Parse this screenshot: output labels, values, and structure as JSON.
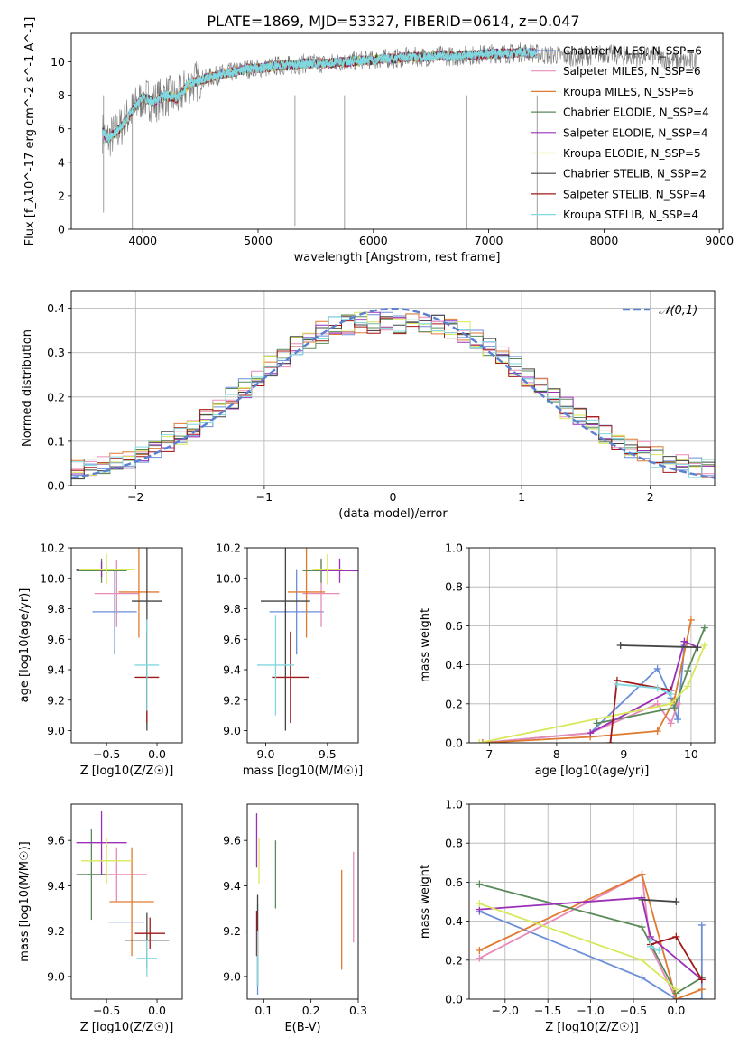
{
  "title": "PLATE=1869, MJD=53327, FIBERID=0614, z=0.047",
  "legend_colors": [
    "#6a8ed8",
    "#e88bb8",
    "#e07a30",
    "#5a8a5a",
    "#9b30b8",
    "#d8e85a",
    "#444444",
    "#a01818",
    "#80d8e0"
  ],
  "chart_data": [
    {
      "type": "line",
      "id": "spectrum",
      "xlabel": "wavelength [Angstrom, rest frame]",
      "ylabel": "Flux [f_λ10^-17 erg cm^-2 s^-1 A^-1]",
      "xlim": [
        3380,
        9030
      ],
      "ylim": [
        0,
        11.7
      ],
      "xticks": [
        4000,
        5000,
        6000,
        7000,
        8000,
        9000
      ],
      "yticks": [
        0,
        2,
        4,
        6,
        8,
        10
      ],
      "data_spectrum": {
        "name": "data",
        "color": "#777777",
        "x": [
          3650,
          3700,
          3800,
          3900,
          4000,
          4100,
          4200,
          4300,
          4400,
          4500,
          4600,
          4700,
          4800,
          4900,
          5000,
          5100,
          5200,
          5300,
          5400,
          5500,
          5600,
          5700,
          5800,
          5900,
          6000,
          6100,
          6200,
          6300,
          6400,
          6500,
          6600,
          6700,
          6800,
          6900,
          7000,
          7100,
          7200,
          7300,
          7400,
          7500,
          7600,
          7700,
          7800,
          7900,
          8000,
          8100,
          8200,
          8300,
          8400,
          8500,
          8600,
          8700,
          8800
        ],
        "y": [
          5.8,
          5.4,
          6.0,
          7.0,
          7.9,
          7.6,
          8.0,
          7.8,
          8.7,
          8.9,
          9.1,
          9.3,
          9.4,
          9.6,
          9.6,
          9.7,
          9.8,
          9.8,
          9.9,
          9.9,
          9.9,
          10.0,
          10.0,
          10.1,
          10.1,
          10.2,
          10.2,
          10.3,
          10.3,
          10.3,
          10.4,
          10.3,
          10.4,
          10.4,
          10.5,
          10.5,
          10.5,
          10.6,
          10.5,
          10.4,
          10.4,
          10.3,
          10.3,
          10.4,
          10.5,
          10.4,
          10.3,
          10.3,
          10.4,
          10.2,
          10.1,
          10.0,
          10.0
        ]
      },
      "series": [
        {
          "name": "Chabrier MILES, N_SSP=6"
        },
        {
          "name": "Salpeter MILES, N_SSP=6"
        },
        {
          "name": "Kroupa MILES, N_SSP=6"
        },
        {
          "name": "Chabrier ELODIE, N_SSP=4"
        },
        {
          "name": "Salpeter ELODIE, N_SSP=4"
        },
        {
          "name": "Kroupa ELODIE, N_SSP=5"
        },
        {
          "name": "Chabrier STELIB, N_SSP=2"
        },
        {
          "name": "Salpeter STELIB, N_SSP=4"
        },
        {
          "name": "Kroupa STELIB, N_SSP=4"
        }
      ],
      "legend_position": "right"
    },
    {
      "type": "line",
      "id": "residuals",
      "xlabel": "(data-model)/error",
      "ylabel": "Normed distribution",
      "xlim": [
        -2.5,
        2.5
      ],
      "ylim": [
        0,
        0.44
      ],
      "xticks": [
        -2,
        -1,
        0,
        1,
        2
      ],
      "yticks": [
        0.0,
        0.1,
        0.2,
        0.3,
        0.4
      ],
      "grid": true,
      "bin_edges": [
        -2.5,
        -2.4,
        -2.3,
        -2.2,
        -2.1,
        -2.0,
        -1.9,
        -1.8,
        -1.7,
        -1.6,
        -1.5,
        -1.4,
        -1.3,
        -1.2,
        -1.1,
        -1.0,
        -0.9,
        -0.8,
        -0.7,
        -0.6,
        -0.5,
        -0.4,
        -0.3,
        -0.2,
        -0.1,
        0.0,
        0.1,
        0.2,
        0.3,
        0.4,
        0.5,
        0.6,
        0.7,
        0.8,
        0.9,
        1.0,
        1.1,
        1.2,
        1.3,
        1.4,
        1.5,
        1.6,
        1.7,
        1.8,
        1.9,
        2.0,
        2.1,
        2.2,
        2.3,
        2.4,
        2.5
      ],
      "gaussian": {
        "name": "𝒩(0,1)",
        "color": "#5a80d0"
      },
      "legend_position": "top-right"
    },
    {
      "type": "scatter",
      "id": "age-vs-Z",
      "xlabel": "Z [log10(Z/Z☉)]",
      "ylabel": "age [log10(age/yr)]",
      "xlim": [
        -0.85,
        0.25
      ],
      "ylim": [
        8.92,
        10.2
      ],
      "xticks": [
        -0.5,
        0.0
      ],
      "yticks": [
        9.0,
        9.2,
        9.4,
        9.6,
        9.8,
        10.0,
        10.2
      ],
      "points": [
        {
          "x": -0.42,
          "y": 9.78,
          "xerr": 0.22,
          "yerr": 0.28,
          "color": "#6a8ed8"
        },
        {
          "x": -0.4,
          "y": 9.9,
          "xerr": 0.22,
          "yerr": 0.22,
          "color": "#e88bb8"
        },
        {
          "x": -0.18,
          "y": 9.91,
          "xerr": 0.2,
          "yerr": 0.3,
          "color": "#e07a30"
        },
        {
          "x": -0.55,
          "y": 10.05,
          "xerr": 0.25,
          "yerr": 0.08,
          "color": "#5a8a5a"
        },
        {
          "x": -0.55,
          "y": 10.06,
          "xerr": 0.25,
          "yerr": 0.05,
          "color": "#9b30b8"
        },
        {
          "x": -0.5,
          "y": 10.06,
          "xerr": 0.28,
          "yerr": 0.1,
          "color": "#d8e85a"
        },
        {
          "x": -0.1,
          "y": 9.85,
          "xerr": 0.15,
          "yerr": 0.85,
          "color": "#444444"
        },
        {
          "x": -0.1,
          "y": 9.35,
          "xerr": 0.12,
          "yerr": 0.3,
          "color": "#a01818"
        },
        {
          "x": -0.1,
          "y": 9.43,
          "xerr": 0.12,
          "yerr": 0.3,
          "color": "#80d8e0"
        }
      ]
    },
    {
      "type": "scatter",
      "id": "age-vs-mass",
      "xlabel": "mass [log10(M/M☉)]",
      "ylabel": "",
      "xlim": [
        8.85,
        9.75
      ],
      "ylim": [
        8.92,
        10.2
      ],
      "xticks": [
        9.0,
        9.5
      ],
      "yticks": [
        9.0,
        9.2,
        9.4,
        9.6,
        9.8,
        10.0,
        10.2
      ],
      "points": [
        {
          "x": 9.25,
          "y": 9.78,
          "xerr": 0.22,
          "yerr": 0.28,
          "color": "#6a8ed8"
        },
        {
          "x": 9.45,
          "y": 9.9,
          "xerr": 0.15,
          "yerr": 0.22,
          "color": "#e88bb8"
        },
        {
          "x": 9.33,
          "y": 9.91,
          "xerr": 0.15,
          "yerr": 0.3,
          "color": "#e07a30"
        },
        {
          "x": 9.45,
          "y": 10.05,
          "xerr": 0.15,
          "yerr": 0.08,
          "color": "#5a8a5a"
        },
        {
          "x": 9.6,
          "y": 10.05,
          "xerr": 0.15,
          "yerr": 0.08,
          "color": "#9b30b8"
        },
        {
          "x": 9.5,
          "y": 10.06,
          "xerr": 0.12,
          "yerr": 0.1,
          "color": "#d8e85a"
        },
        {
          "x": 9.16,
          "y": 9.85,
          "xerr": 0.2,
          "yerr": 0.85,
          "color": "#444444"
        },
        {
          "x": 9.2,
          "y": 9.35,
          "xerr": 0.15,
          "yerr": 0.3,
          "color": "#a01818"
        },
        {
          "x": 9.08,
          "y": 9.43,
          "xerr": 0.15,
          "yerr": 0.33,
          "color": "#80d8e0"
        }
      ]
    },
    {
      "type": "line",
      "id": "mass-weight-vs-age",
      "xlabel": "age [log10(age/yr)]",
      "ylabel": "mass weight",
      "xlim": [
        6.7,
        10.35
      ],
      "ylim": [
        0,
        1.0
      ],
      "xticks": [
        7,
        8,
        9,
        10
      ],
      "yticks": [
        0.0,
        0.2,
        0.4,
        0.6,
        0.8,
        1.0
      ],
      "grid": true,
      "series": [
        {
          "color": "#6a8ed8",
          "x": [
            6.9,
            8.5,
            9.5,
            9.7,
            9.8,
            9.9
          ],
          "y": [
            0.0,
            0.05,
            0.38,
            0.23,
            0.12,
            0.5
          ]
        },
        {
          "color": "#e88bb8",
          "x": [
            6.9,
            8.5,
            9.5,
            9.7,
            9.8
          ],
          "y": [
            0.0,
            0.05,
            0.2,
            0.1,
            0.2
          ]
        },
        {
          "color": "#e07a30",
          "x": [
            6.9,
            8.5,
            9.5,
            9.75,
            10.0
          ],
          "y": [
            0.0,
            0.03,
            0.06,
            0.22,
            0.63
          ]
        },
        {
          "color": "#5a8a5a",
          "x": [
            8.6,
            9.75,
            9.95,
            10.2
          ],
          "y": [
            0.1,
            0.18,
            0.37,
            0.59
          ]
        },
        {
          "color": "#9b30b8",
          "x": [
            8.5,
            9.7,
            9.9,
            10.1
          ],
          "y": [
            0.05,
            0.27,
            0.52,
            0.49
          ]
        },
        {
          "color": "#d8e85a",
          "x": [
            6.85,
            9.7,
            9.95,
            10.2
          ],
          "y": [
            0.0,
            0.2,
            0.29,
            0.5
          ]
        },
        {
          "color": "#444444",
          "x": [
            8.95,
            10.1
          ],
          "y": [
            0.5,
            0.49
          ]
        },
        {
          "color": "#a01818",
          "x": [
            8.8,
            8.9,
            9.7
          ],
          "y": [
            0.0,
            0.32,
            0.27
          ]
        },
        {
          "color": "#80d8e0",
          "x": [
            8.9,
            9.5,
            9.7
          ],
          "y": [
            0.3,
            0.28,
            0.25
          ]
        }
      ]
    },
    {
      "type": "scatter",
      "id": "mass-vs-Z",
      "xlabel": "Z [log10(Z/Z☉)]",
      "ylabel": "mass [log10(M/M☉)]",
      "xlim": [
        -0.85,
        0.25
      ],
      "ylim": [
        8.9,
        9.76
      ],
      "xticks": [
        -0.5,
        0.0
      ],
      "yticks": [
        9.0,
        9.2,
        9.4,
        9.6
      ],
      "points": [
        {
          "x": -0.3,
          "y": 9.24,
          "xerr": 0.18,
          "yerr": 0.0,
          "color": "#6a8ed8"
        },
        {
          "x": -0.4,
          "y": 9.45,
          "xerr": 0.3,
          "yerr": 0.12,
          "color": "#e88bb8"
        },
        {
          "x": -0.25,
          "y": 9.33,
          "xerr": 0.22,
          "yerr": 0.24,
          "color": "#e07a30"
        },
        {
          "x": -0.65,
          "y": 9.45,
          "xerr": 0.15,
          "yerr": 0.2,
          "color": "#5a8a5a"
        },
        {
          "x": -0.55,
          "y": 9.59,
          "xerr": 0.25,
          "yerr": 0.14,
          "color": "#9b30b8"
        },
        {
          "x": -0.5,
          "y": 9.51,
          "xerr": 0.25,
          "yerr": 0.1,
          "color": "#d8e85a"
        },
        {
          "x": -0.1,
          "y": 9.16,
          "xerr": 0.22,
          "yerr": 0.12,
          "color": "#444444"
        },
        {
          "x": -0.07,
          "y": 9.19,
          "xerr": 0.15,
          "yerr": 0.07,
          "color": "#a01818"
        },
        {
          "x": -0.1,
          "y": 9.08,
          "xerr": 0.1,
          "yerr": 0.08,
          "color": "#80d8e0"
        }
      ]
    },
    {
      "type": "scatter",
      "id": "mass-vs-EBV",
      "xlabel": "E(B-V)",
      "ylabel": "",
      "xlim": [
        0.065,
        0.3
      ],
      "ylim": [
        8.9,
        9.76
      ],
      "xticks": [
        0.1,
        0.2,
        0.3
      ],
      "yticks": [
        9.0,
        9.2,
        9.4,
        9.6
      ],
      "points": [
        {
          "x": 0.087,
          "y": 9.12,
          "yerr": 0.2,
          "color": "#6a8ed8"
        },
        {
          "x": 0.29,
          "y": 9.35,
          "yerr": 0.2,
          "color": "#e88bb8"
        },
        {
          "x": 0.265,
          "y": 9.25,
          "yerr": 0.22,
          "color": "#e07a30"
        },
        {
          "x": 0.125,
          "y": 9.45,
          "yerr": 0.15,
          "color": "#5a8a5a"
        },
        {
          "x": 0.085,
          "y": 9.6,
          "yerr": 0.12,
          "color": "#9b30b8"
        },
        {
          "x": 0.09,
          "y": 9.51,
          "yerr": 0.1,
          "color": "#d8e85a"
        },
        {
          "x": 0.087,
          "y": 9.16,
          "yerr": 0.2,
          "color": "#444444"
        },
        {
          "x": 0.085,
          "y": 9.19,
          "yerr": 0.1,
          "color": "#a01818"
        },
        {
          "x": 0.087,
          "y": 9.08,
          "yerr": 0.12,
          "color": "#80d8e0"
        }
      ]
    },
    {
      "type": "line",
      "id": "mass-weight-vs-Z",
      "xlabel": "Z [log10(Z/Z☉)]",
      "ylabel": "mass weight",
      "xlim": [
        -2.42,
        0.45
      ],
      "ylim": [
        0,
        1.0
      ],
      "xticks": [
        -2.0,
        -1.5,
        -1.0,
        -0.5,
        0.0
      ],
      "yticks": [
        0.0,
        0.2,
        0.4,
        0.6,
        0.8,
        1.0
      ],
      "grid": true,
      "series": [
        {
          "color": "#6a8ed8",
          "x": [
            -2.3,
            -0.4,
            0.0,
            0.0,
            0.3,
            0.3
          ],
          "y": [
            0.45,
            0.11,
            0.0,
            0.0,
            0.0,
            0.38
          ]
        },
        {
          "color": "#e88bb8",
          "x": [
            -2.3,
            -0.4,
            -0.3,
            0.0
          ],
          "y": [
            0.21,
            0.64,
            0.27,
            0.0
          ]
        },
        {
          "color": "#e07a30",
          "x": [
            -2.3,
            -0.4,
            0.0,
            0.3
          ],
          "y": [
            0.25,
            0.64,
            0.0,
            0.05
          ]
        },
        {
          "color": "#5a8a5a",
          "x": [
            -2.3,
            -0.4,
            0.0,
            0.3
          ],
          "y": [
            0.59,
            0.37,
            0.03,
            0.11
          ]
        },
        {
          "color": "#9b30b8",
          "x": [
            -2.3,
            -0.4,
            -0.3,
            0.3
          ],
          "y": [
            0.46,
            0.52,
            0.32,
            0.1
          ]
        },
        {
          "color": "#d8e85a",
          "x": [
            -2.3,
            -0.4,
            0.0
          ],
          "y": [
            0.49,
            0.2,
            0.05
          ]
        },
        {
          "color": "#444444",
          "x": [
            -0.4,
            0.0
          ],
          "y": [
            0.51,
            0.5
          ]
        },
        {
          "color": "#a01818",
          "x": [
            -0.3,
            0.0,
            0.3
          ],
          "y": [
            0.28,
            0.32,
            0.1
          ]
        },
        {
          "color": "#80d8e0",
          "x": [
            -0.3,
            -0.3,
            -0.2
          ],
          "y": [
            0.3,
            0.27,
            0.25
          ]
        }
      ]
    }
  ]
}
